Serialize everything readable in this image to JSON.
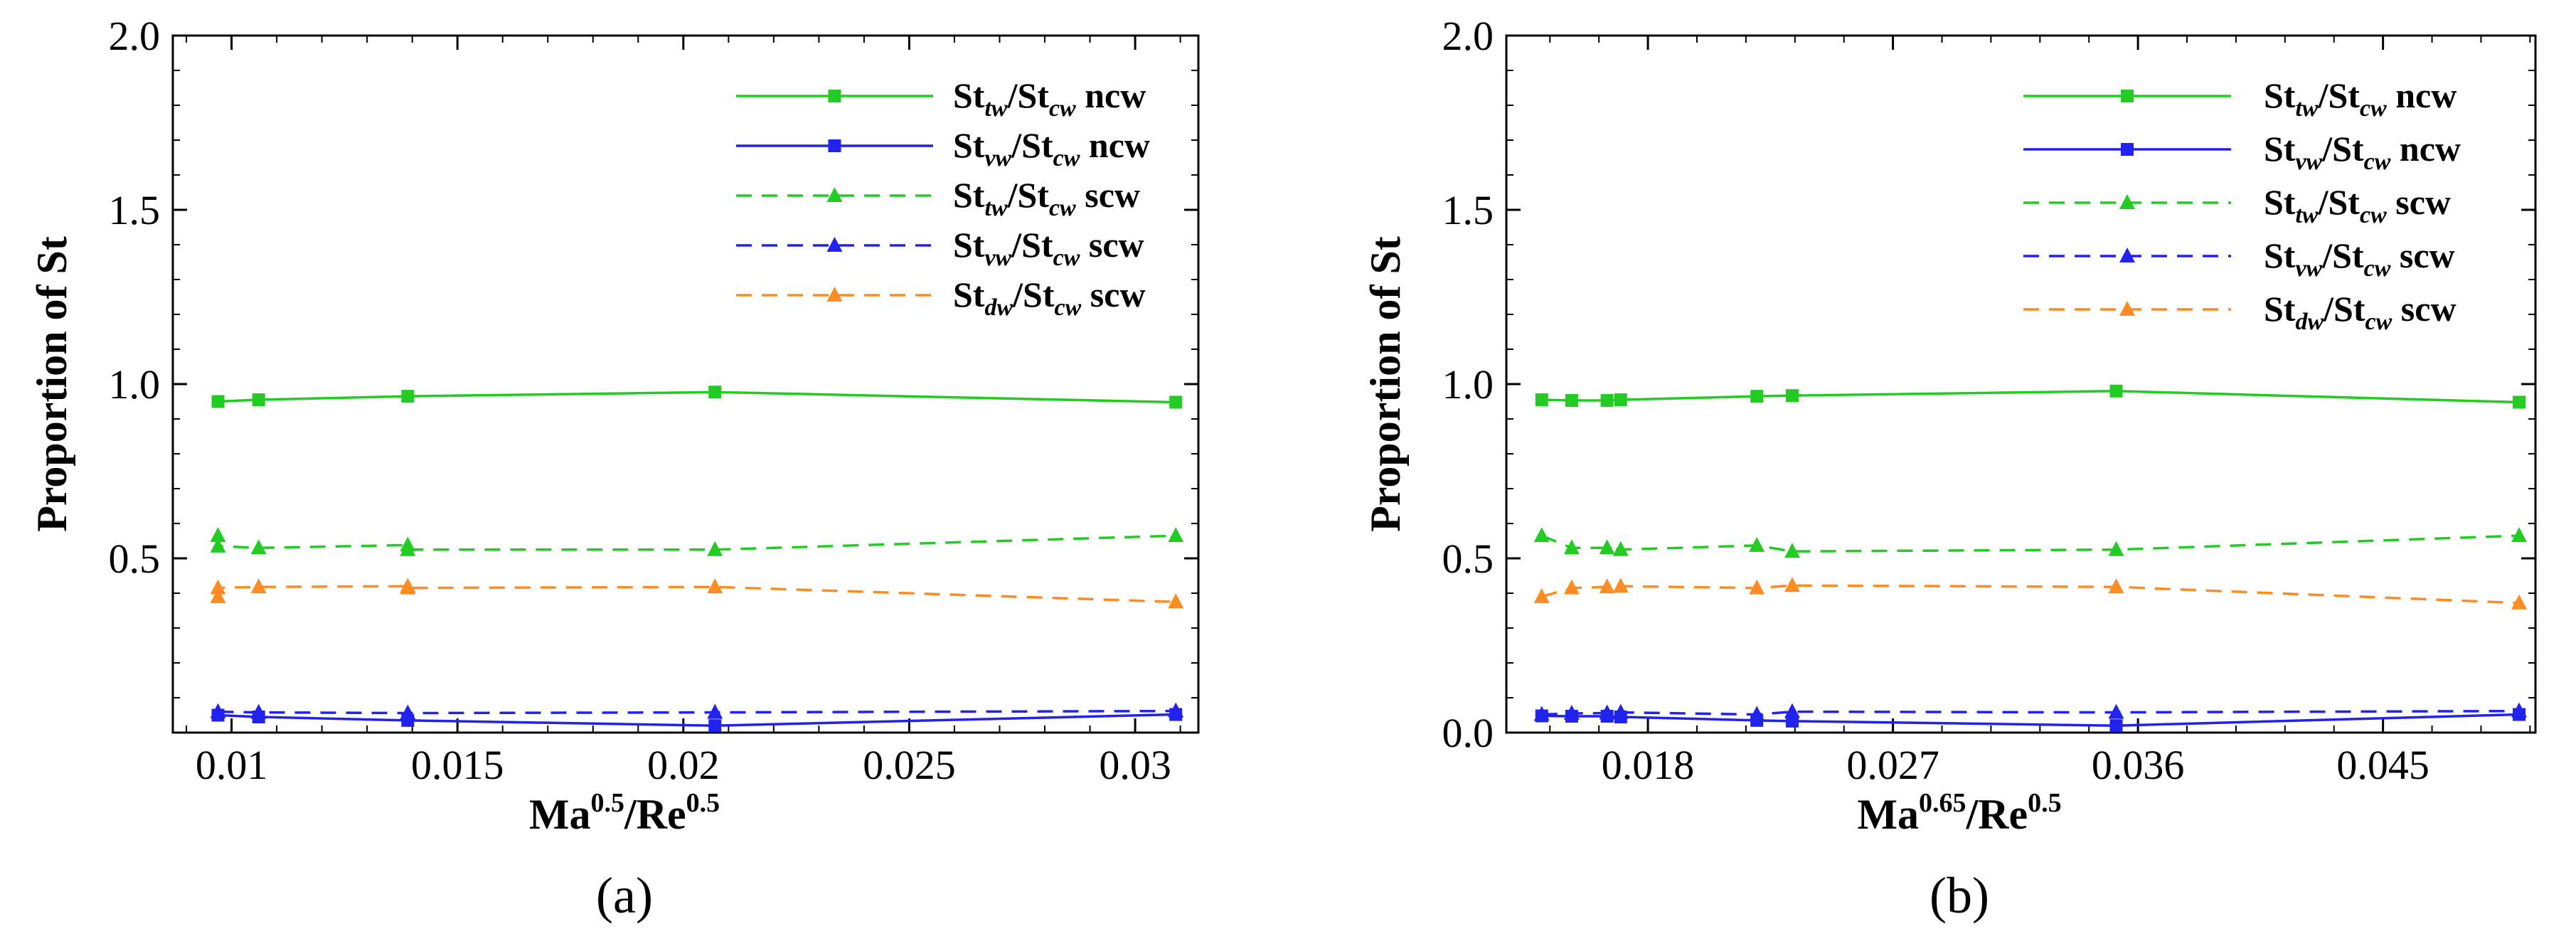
{
  "chart_data": [
    {
      "type": "line",
      "panel_label": "(a)",
      "title": "",
      "xlabel": "Ma^0.5/Re^0.5",
      "xlabel_base": "Ma",
      "xlabel_exp": "0.5",
      "xlabel_base2": "/Re",
      "xlabel_exp2": "0.5",
      "ylabel": "Proportion of St",
      "xlim": [
        0.0087,
        0.0314
      ],
      "ylim": [
        0,
        2.0
      ],
      "xticks": [
        0.01,
        0.015,
        0.02,
        0.025,
        0.03
      ],
      "xtick_labels": [
        "0.01",
        "0.015",
        "0.02",
        "0.025",
        "0.03"
      ],
      "yticks": [
        0.5,
        1.0,
        1.5,
        2.0
      ],
      "ytick_labels": [
        "0.5",
        "1.0",
        "1.5",
        "2.0"
      ],
      "minor_x_step": 0.001,
      "minor_y_step": 0.1,
      "legend_position": "top-right",
      "series": [
        {
          "name": "St_tw/St_cw ncw",
          "base": "St",
          "sub": "tw",
          "mid": "/St",
          "sub2": "cw",
          "suffix": " ncw",
          "color": "#22cc22",
          "dash": "solid",
          "marker": "square",
          "x": [
            0.0097,
            0.0106,
            0.0139,
            0.0207,
            0.0309
          ],
          "y": [
            0.95,
            0.955,
            0.965,
            0.977,
            0.948
          ]
        },
        {
          "name": "St_vw/St_cw ncw",
          "base": "St",
          "sub": "vw",
          "mid": "/St",
          "sub2": "cw",
          "suffix": " ncw",
          "color": "#2222ee",
          "dash": "solid",
          "marker": "square",
          "x": [
            0.0097,
            0.0106,
            0.0139,
            0.0207,
            0.0309
          ],
          "y": [
            0.05,
            0.045,
            0.035,
            0.02,
            0.052
          ]
        },
        {
          "name": "St_tw/St_cw scw",
          "base": "St",
          "sub": "tw",
          "mid": "/St",
          "sub2": "cw",
          "suffix": " scw",
          "color": "#22cc22",
          "dash": "dashed",
          "marker": "triangle",
          "x": [
            0.0097,
            0.0097,
            0.0106,
            0.0139,
            0.0139,
            0.0207,
            0.0309
          ],
          "y": [
            0.565,
            0.535,
            0.53,
            0.538,
            0.525,
            0.525,
            0.565
          ]
        },
        {
          "name": "St_vw/St_cw scw",
          "base": "St",
          "sub": "vw",
          "mid": "/St",
          "sub2": "cw",
          "suffix": " scw",
          "color": "#2222ee",
          "dash": "dashed",
          "marker": "triangle",
          "x": [
            0.0097,
            0.0106,
            0.0139,
            0.0207,
            0.0309
          ],
          "y": [
            0.06,
            0.058,
            0.056,
            0.058,
            0.062
          ]
        },
        {
          "name": "St_dw/St_cw scw",
          "base": "St",
          "sub": "dw",
          "mid": "/St",
          "sub2": "cw",
          "suffix": " scw",
          "color": "#ff8c22",
          "dash": "dashed",
          "marker": "triangle",
          "x": [
            0.0097,
            0.0097,
            0.0106,
            0.0139,
            0.0139,
            0.0207,
            0.0309
          ],
          "y": [
            0.39,
            0.415,
            0.418,
            0.42,
            0.415,
            0.418,
            0.375
          ]
        }
      ]
    },
    {
      "type": "line",
      "panel_label": "(b)",
      "title": "",
      "xlabel": "Ma^0.65/Re^0.5",
      "xlabel_base": "Ma",
      "xlabel_exp": "0.65",
      "xlabel_base2": "/Re",
      "xlabel_exp2": "0.5",
      "ylabel": "Proportion of St",
      "xlim": [
        0.0128,
        0.0506
      ],
      "ylim": [
        0,
        2.0
      ],
      "xticks": [
        0.018,
        0.027,
        0.036,
        0.045
      ],
      "xtick_labels": [
        "0.018",
        "0.027",
        "0.036",
        "0.045"
      ],
      "yticks": [
        0.0,
        0.5,
        1.0,
        1.5,
        2.0
      ],
      "ytick_labels": [
        "0.0",
        "0.5",
        "1.0",
        "1.5",
        "2.0"
      ],
      "minor_x_step": 0.0018,
      "minor_y_step": 0.1,
      "legend_position": "top-right",
      "series": [
        {
          "name": "St_tw/St_cw ncw",
          "base": "St",
          "sub": "tw",
          "mid": "/St",
          "sub2": "cw",
          "suffix": " ncw",
          "color": "#22cc22",
          "dash": "solid",
          "marker": "square",
          "x": [
            0.0141,
            0.0152,
            0.0165,
            0.017,
            0.022,
            0.0233,
            0.0352,
            0.05
          ],
          "y": [
            0.955,
            0.953,
            0.953,
            0.955,
            0.965,
            0.967,
            0.98,
            0.948
          ]
        },
        {
          "name": "St_vw/St_cw ncw",
          "base": "St",
          "sub": "vw",
          "mid": "/St",
          "sub2": "cw",
          "suffix": " ncw",
          "color": "#2222ee",
          "dash": "solid",
          "marker": "square",
          "x": [
            0.0141,
            0.0152,
            0.0165,
            0.017,
            0.022,
            0.0233,
            0.0352,
            0.05
          ],
          "y": [
            0.048,
            0.047,
            0.047,
            0.045,
            0.035,
            0.033,
            0.02,
            0.052
          ]
        },
        {
          "name": "St_tw/St_cw scw",
          "base": "St",
          "sub": "tw",
          "mid": "/St",
          "sub2": "cw",
          "suffix": " scw",
          "color": "#22cc22",
          "dash": "dashed",
          "marker": "triangle",
          "x": [
            0.0141,
            0.0152,
            0.0165,
            0.017,
            0.022,
            0.0233,
            0.0352,
            0.05
          ],
          "y": [
            0.565,
            0.53,
            0.53,
            0.525,
            0.537,
            0.52,
            0.525,
            0.565
          ]
        },
        {
          "name": "St_vw/St_cw scw",
          "base": "St",
          "sub": "vw",
          "mid": "/St",
          "sub2": "cw",
          "suffix": " scw",
          "color": "#2222ee",
          "dash": "dashed",
          "marker": "triangle",
          "x": [
            0.0141,
            0.0152,
            0.0165,
            0.017,
            0.022,
            0.0233,
            0.0352,
            0.05
          ],
          "y": [
            0.052,
            0.055,
            0.056,
            0.058,
            0.052,
            0.06,
            0.058,
            0.062
          ]
        },
        {
          "name": "St_dw/St_cw scw",
          "base": "St",
          "sub": "dw",
          "mid": "/St",
          "sub2": "cw",
          "suffix": " scw",
          "color": "#ff8c22",
          "dash": "dashed",
          "marker": "triangle",
          "x": [
            0.0141,
            0.0152,
            0.0165,
            0.017,
            0.022,
            0.0233,
            0.0352,
            0.05
          ],
          "y": [
            0.39,
            0.415,
            0.418,
            0.42,
            0.415,
            0.422,
            0.418,
            0.372
          ]
        }
      ]
    }
  ]
}
